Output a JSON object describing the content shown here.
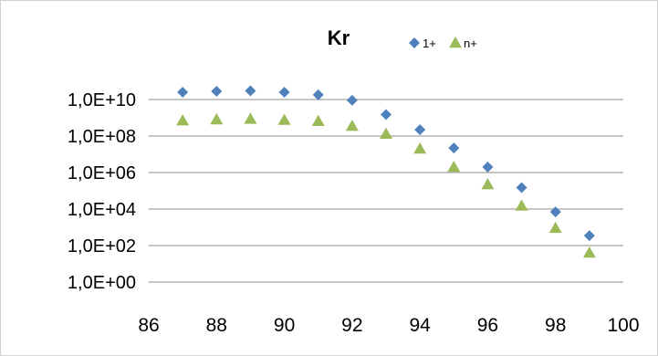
{
  "chart_data": {
    "type": "scatter",
    "title": "Kr",
    "xlabel": "",
    "ylabel": "",
    "xlim": [
      86,
      100
    ],
    "x_ticks": [
      86,
      88,
      90,
      92,
      94,
      96,
      98,
      100
    ],
    "x_tick_labels": [
      "86",
      "88",
      "90",
      "92",
      "94",
      "96",
      "98",
      "100"
    ],
    "y_scale": "log",
    "ylim": [
      1,
      10000000000
    ],
    "y_ticks": [
      1,
      100,
      10000,
      1000000,
      100000000,
      10000000000
    ],
    "y_tick_labels": [
      "1,0E+00",
      "1,0E+02",
      "1,0E+04",
      "1,0E+06",
      "1,0E+08",
      "1,0E+10"
    ],
    "grid": "horizontal",
    "legend_position": "top-right",
    "series": [
      {
        "name": "1+",
        "marker": "diamond",
        "color": "#4f81bd",
        "x": [
          87,
          88,
          89,
          90,
          91,
          92,
          93,
          94,
          95,
          96,
          97,
          98,
          99
        ],
        "y": [
          25000000000,
          28000000000,
          30000000000,
          25000000000,
          18000000000,
          9000000000,
          1500000000,
          220000000,
          22000000,
          2000000,
          150000,
          7000,
          350
        ]
      },
      {
        "name": "n+",
        "marker": "triangle",
        "color": "#9bbb59",
        "x": [
          87,
          88,
          89,
          90,
          91,
          92,
          93,
          94,
          95,
          96,
          97,
          98,
          99
        ],
        "y": [
          700000000,
          800000000,
          850000000,
          750000000,
          650000000,
          350000000,
          130000000,
          20000000,
          2000000,
          220000,
          15000,
          900,
          40
        ]
      }
    ]
  }
}
